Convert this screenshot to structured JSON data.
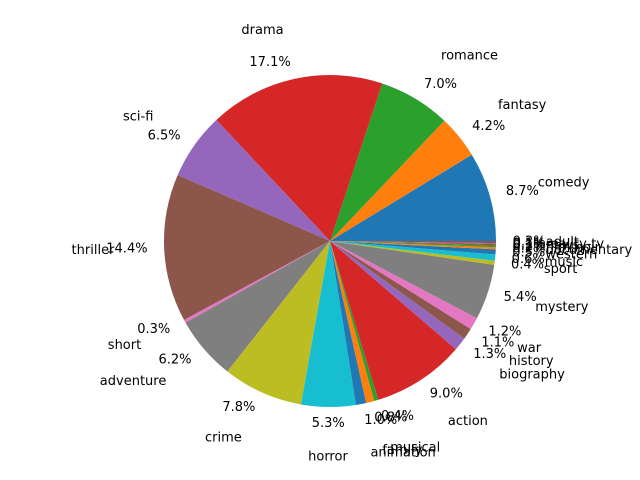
{
  "chart_data": {
    "type": "pie",
    "title": "",
    "start_angle_deg": 0,
    "direction": "counterclockwise",
    "slices": [
      {
        "label": "comedy",
        "value": 8.7,
        "pct": "8.7%",
        "color": "#1f77b4"
      },
      {
        "label": "fantasy",
        "value": 4.2,
        "pct": "4.2%",
        "color": "#ff7f0e"
      },
      {
        "label": "romance",
        "value": 7.0,
        "pct": "7.0%",
        "color": "#2ca02c"
      },
      {
        "label": "drama",
        "value": 17.1,
        "pct": "17.1%",
        "color": "#d62728"
      },
      {
        "label": "sci-fi",
        "value": 6.5,
        "pct": "6.5%",
        "color": "#9467bd"
      },
      {
        "label": "thriller",
        "value": 14.4,
        "pct": "14.4%",
        "color": "#8c564b"
      },
      {
        "label": "short",
        "value": 0.3,
        "pct": "0.3%",
        "color": "#e377c2"
      },
      {
        "label": "adventure",
        "value": 6.2,
        "pct": "6.2%",
        "color": "#7f7f7f"
      },
      {
        "label": "crime",
        "value": 7.8,
        "pct": "7.8%",
        "color": "#bcbd22"
      },
      {
        "label": "horror",
        "value": 5.3,
        "pct": "5.3%",
        "color": "#17becf"
      },
      {
        "label": "animation",
        "value": 1.0,
        "pct": "1.0%",
        "color": "#1f77b4"
      },
      {
        "label": "family",
        "value": 0.8,
        "pct": "0.8%",
        "color": "#ff7f0e"
      },
      {
        "label": "musical",
        "value": 0.4,
        "pct": "0.4%",
        "color": "#2ca02c"
      },
      {
        "label": "action",
        "value": 9.0,
        "pct": "9.0%",
        "color": "#d62728"
      },
      {
        "label": "biography",
        "value": 1.3,
        "pct": "1.3%",
        "color": "#9467bd"
      },
      {
        "label": "history",
        "value": 1.1,
        "pct": "1.1%",
        "color": "#8c564b"
      },
      {
        "label": "war",
        "value": 1.2,
        "pct": "1.2%",
        "color": "#e377c2"
      },
      {
        "label": "mystery",
        "value": 5.4,
        "pct": "5.4%",
        "color": "#7f7f7f"
      },
      {
        "label": "sport",
        "value": 0.4,
        "pct": "0.4%",
        "color": "#bcbd22"
      },
      {
        "label": "music",
        "value": 0.6,
        "pct": "0.6%",
        "color": "#17becf"
      },
      {
        "label": "western",
        "value": 0.5,
        "pct": "0.5%",
        "color": "#1f77b4"
      },
      {
        "label": "documentary",
        "value": 0.2,
        "pct": "0.2%",
        "color": "#ff7f0e"
      },
      {
        "label": "film-noir",
        "value": 0.2,
        "pct": "0.2%",
        "color": "#2ca02c"
      },
      {
        "label": "news",
        "value": 0.1,
        "pct": "0.1%",
        "color": "#d62728"
      },
      {
        "label": "reality-tv",
        "value": 0.1,
        "pct": "0.1%",
        "color": "#9467bd"
      },
      {
        "label": "adult",
        "value": 0.2,
        "pct": "0.2%",
        "color": "#8c564b"
      }
    ]
  }
}
